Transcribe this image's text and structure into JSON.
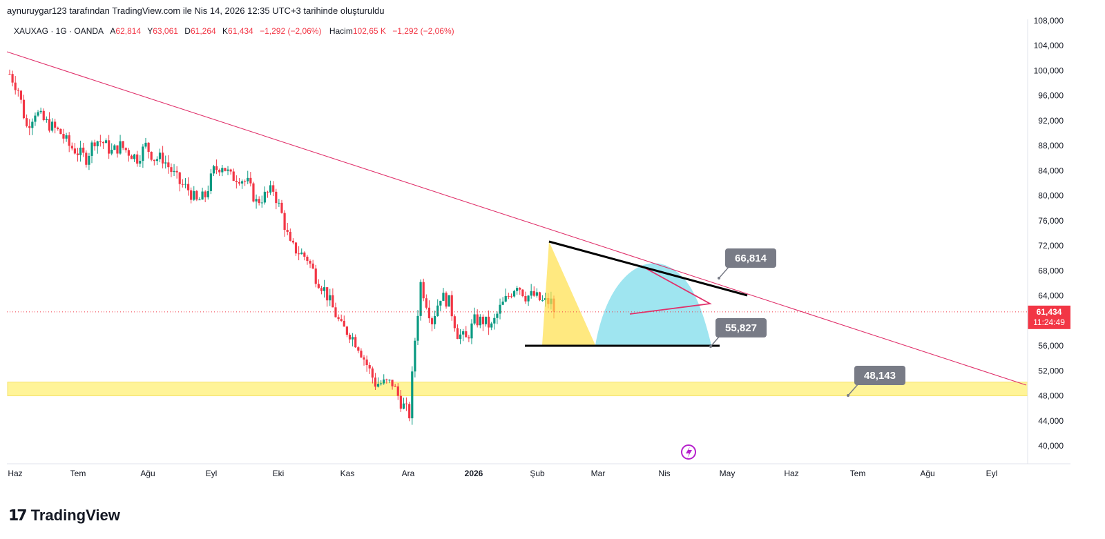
{
  "header": {
    "caption": "aynuruygar123 tarafından TradingView.com ile Nis 14, 2026 12:35 UTC+3 tarihinde oluşturuldu"
  },
  "legend": {
    "symbol": "XAUXAG · 1G · OANDA",
    "open_label": "A",
    "open": "62,814",
    "high_label": "Y",
    "high": "63,061",
    "low_label": "D",
    "low": "61,264",
    "close_label": "K",
    "close": "61,434",
    "change": "−1,292 (−2,06%)",
    "volume_label": "Hacim",
    "volume": "102,65 K",
    "volume_change": "−1,292 (−2,06%)"
  },
  "price_tag": {
    "price": "61,434",
    "countdown": "11:24:49"
  },
  "annotations": [
    "66,814",
    "55,827",
    "48,143"
  ],
  "brand": {
    "name": "TradingView"
  },
  "colors": {
    "up": "#089981",
    "down": "#f23645",
    "trendline": "#e0316b",
    "support_zone": "#fff176",
    "triangle_fill": "#ffe04a",
    "cup_fill": "#5fd3e6",
    "callout": "#787b86"
  },
  "chart_data": {
    "type": "candlestick",
    "y_ticks": [
      "108,000",
      "104,000",
      "100,000",
      "96,000",
      "92,000",
      "88,000",
      "84,000",
      "80,000",
      "76,000",
      "72,000",
      "68,000",
      "64,000",
      "60,000",
      "56,000",
      "52,000",
      "48,000",
      "44,000",
      "40,000"
    ],
    "y_range": [
      37000,
      109000
    ],
    "x_ticks": [
      "Haz",
      "Tem",
      "Ağu",
      "Eyl",
      "Eki",
      "Kas",
      "Ara",
      "2026",
      "Şub",
      "Mar",
      "Nis",
      "May",
      "Haz",
      "Tem",
      "Ağu",
      "Eyl"
    ],
    "last_price": 61.434,
    "price_keypoints": [
      [
        0,
        99.5
      ],
      [
        3,
        97
      ],
      [
        6,
        91
      ],
      [
        9,
        93.5
      ],
      [
        12,
        92
      ],
      [
        15,
        91
      ],
      [
        18,
        90
      ],
      [
        21,
        88
      ],
      [
        24,
        87
      ],
      [
        27,
        86
      ],
      [
        30,
        89
      ],
      [
        33,
        88.5
      ],
      [
        36,
        87
      ],
      [
        39,
        88
      ],
      [
        42,
        87
      ],
      [
        45,
        86
      ],
      [
        48,
        88
      ],
      [
        51,
        86
      ],
      [
        54,
        86
      ],
      [
        57,
        84
      ],
      [
        60,
        82
      ],
      [
        63,
        81
      ],
      [
        66,
        79
      ],
      [
        69,
        80
      ],
      [
        72,
        84
      ],
      [
        75,
        85
      ],
      [
        78,
        83
      ],
      [
        81,
        83
      ],
      [
        84,
        82
      ],
      [
        87,
        79
      ],
      [
        90,
        80
      ],
      [
        93,
        81
      ],
      [
        96,
        77
      ],
      [
        99,
        72
      ],
      [
        102,
        71
      ],
      [
        105,
        70
      ],
      [
        108,
        67
      ],
      [
        111,
        65
      ],
      [
        114,
        62
      ],
      [
        117,
        59
      ],
      [
        120,
        58
      ],
      [
        123,
        56
      ],
      [
        126,
        53
      ],
      [
        129,
        50
      ],
      [
        132,
        50
      ],
      [
        135,
        50
      ],
      [
        138,
        47
      ],
      [
        141,
        45
      ],
      [
        143,
        57
      ],
      [
        145,
        66
      ],
      [
        147,
        63
      ],
      [
        149,
        60
      ],
      [
        152,
        64
      ],
      [
        155,
        63
      ],
      [
        158,
        58
      ],
      [
        161,
        57
      ],
      [
        164,
        60
      ],
      [
        167,
        60
      ],
      [
        170,
        59
      ],
      [
        173,
        62
      ],
      [
        176,
        64
      ],
      [
        179,
        66
      ],
      [
        182,
        64
      ],
      [
        185,
        64
      ],
      [
        188,
        63
      ],
      [
        191,
        63
      ],
      [
        192,
        61.4
      ]
    ],
    "levels": [
      {
        "label": "66,814",
        "value": 66.814
      },
      {
        "label": "55,827",
        "value": 55.827
      },
      {
        "label": "48,143",
        "value": 48.143
      }
    ],
    "support_zone": [
      48.0,
      50.2
    ]
  }
}
